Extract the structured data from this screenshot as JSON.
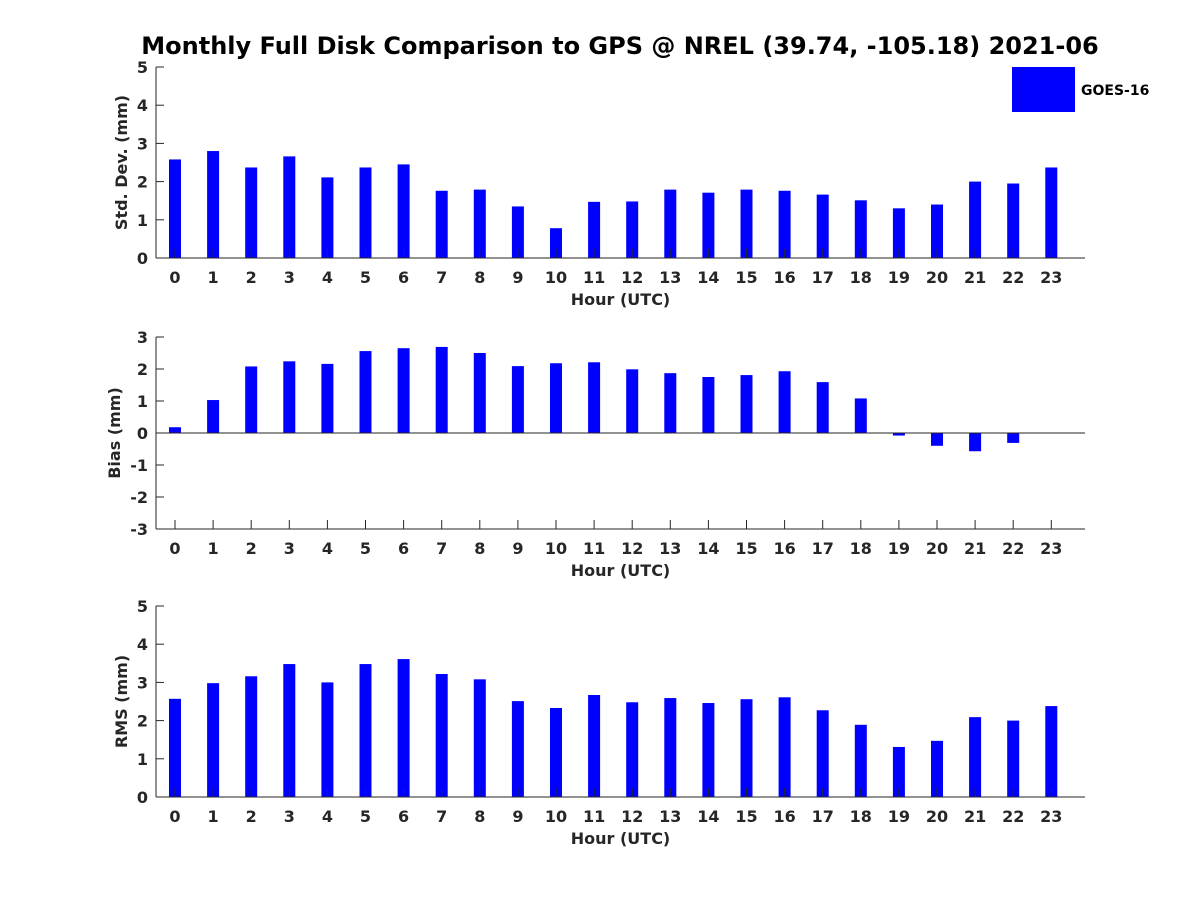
{
  "chart": {
    "title": "Monthly Full Disk Comparison to GPS @ NREL (39.74, -105.18) 2021-06",
    "legend": {
      "label": "GOES-16",
      "placement": "top-right"
    },
    "bar_color": "#0000ff"
  },
  "chart_data": [
    {
      "type": "bar",
      "xlabel": "Hour (UTC)",
      "ylabel": "Std. Dev. (mm)",
      "ylim": [
        0,
        5
      ],
      "yticks": [
        0,
        1,
        2,
        3,
        4,
        5
      ],
      "categories": [
        "0",
        "1",
        "2",
        "3",
        "4",
        "5",
        "6",
        "7",
        "8",
        "9",
        "10",
        "11",
        "12",
        "13",
        "14",
        "15",
        "16",
        "17",
        "18",
        "19",
        "20",
        "21",
        "22",
        "23"
      ],
      "series": [
        {
          "name": "GOES-16",
          "values": [
            2.58,
            2.8,
            2.37,
            2.66,
            2.11,
            2.37,
            2.45,
            1.76,
            1.79,
            1.35,
            0.78,
            1.47,
            1.48,
            1.79,
            1.71,
            1.79,
            1.76,
            1.66,
            1.51,
            1.3,
            1.4,
            2.0,
            1.95,
            2.37
          ]
        }
      ]
    },
    {
      "type": "bar",
      "xlabel": "Hour (UTC)",
      "ylabel": "Bias (mm)",
      "ylim": [
        -3,
        3
      ],
      "yticks": [
        -3,
        -2,
        -1,
        0,
        1,
        2,
        3
      ],
      "categories": [
        "0",
        "1",
        "2",
        "3",
        "4",
        "5",
        "6",
        "7",
        "8",
        "9",
        "10",
        "11",
        "12",
        "13",
        "14",
        "15",
        "16",
        "17",
        "18",
        "19",
        "20",
        "21",
        "22",
        "23"
      ],
      "series": [
        {
          "name": "GOES-16",
          "values": [
            0.18,
            1.03,
            2.08,
            2.24,
            2.16,
            2.56,
            2.65,
            2.69,
            2.5,
            2.09,
            2.18,
            2.21,
            1.99,
            1.87,
            1.75,
            1.81,
            1.93,
            1.59,
            1.08,
            -0.08,
            -0.4,
            -0.57,
            -0.31,
            0.0
          ]
        }
      ]
    },
    {
      "type": "bar",
      "xlabel": "Hour (UTC)",
      "ylabel": "RMS (mm)",
      "ylim": [
        0,
        5
      ],
      "yticks": [
        0,
        1,
        2,
        3,
        4,
        5
      ],
      "categories": [
        "0",
        "1",
        "2",
        "3",
        "4",
        "5",
        "6",
        "7",
        "8",
        "9",
        "10",
        "11",
        "12",
        "13",
        "14",
        "15",
        "16",
        "17",
        "18",
        "19",
        "20",
        "21",
        "22",
        "23"
      ],
      "series": [
        {
          "name": "GOES-16",
          "values": [
            2.57,
            2.98,
            3.16,
            3.48,
            3.0,
            3.48,
            3.61,
            3.22,
            3.08,
            2.51,
            2.33,
            2.67,
            2.48,
            2.59,
            2.46,
            2.56,
            2.61,
            2.27,
            1.89,
            1.31,
            1.47,
            2.09,
            2.0,
            2.38
          ]
        }
      ]
    }
  ]
}
